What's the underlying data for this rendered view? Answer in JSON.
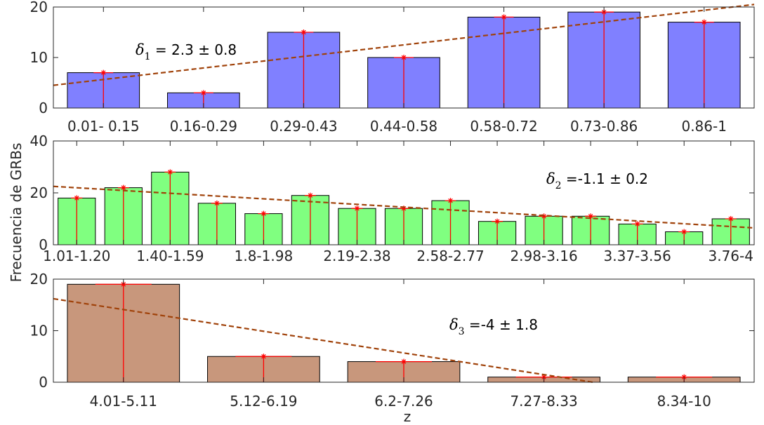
{
  "chart_data": [
    {
      "type": "bar",
      "categories": [
        "0.01- 0.15",
        "0.16-0.29",
        "0.29-0.43",
        "0.44-0.58",
        "0.58-0.72",
        "0.73-0.86",
        "0.86-1"
      ],
      "values": [
        7,
        3,
        15,
        10,
        18,
        19,
        17
      ],
      "ylim": [
        0,
        20
      ],
      "yticks": [
        0,
        10,
        20
      ],
      "bar_color": "#8080ff",
      "trend_line": {
        "start": 4.5,
        "end": 20.5,
        "color": "#a0420a"
      },
      "annotation": {
        "symbol": "δ",
        "sub": "1",
        "rest": " = 2.3 ± 0.8"
      },
      "grid": false
    },
    {
      "type": "bar",
      "categories": [
        "1.01-1.20",
        "",
        "1.40-1.59",
        "",
        "1.8-1.98",
        "",
        "2.19-2.38",
        "",
        "2.58-2.77",
        "",
        "2.98-3.16",
        "",
        "3.37-3.56",
        "",
        "3.76-4"
      ],
      "values": [
        18,
        22,
        28,
        16,
        12,
        19,
        14,
        14,
        17,
        9,
        11,
        11,
        8,
        5,
        10
      ],
      "ylim": [
        0,
        40
      ],
      "yticks": [
        0,
        20,
        40
      ],
      "bar_color": "#80ff80",
      "trend_line": {
        "start": 22.5,
        "end": 6.5,
        "color": "#a0420a"
      },
      "annotation": {
        "symbol": "δ",
        "sub": "2",
        "rest": " =-1.1 ± 0.2"
      },
      "grid": false
    },
    {
      "type": "bar",
      "categories": [
        "4.01-5.11",
        "5.12-6.19",
        "6.2-7.26",
        "7.27-8.33",
        "8.34-10"
      ],
      "values": [
        19,
        5,
        4,
        1,
        1
      ],
      "ylim": [
        0,
        20
      ],
      "yticks": [
        0,
        10,
        20
      ],
      "bar_color": "#c8977c",
      "trend_line": {
        "start": 16.2,
        "end": 0.0,
        "end_frac": 0.77,
        "color": "#a0420a"
      },
      "annotation": {
        "symbol": "δ",
        "sub": "3",
        "rest": " =-4 ± 1.8"
      },
      "grid": false
    }
  ],
  "ylabel": "Frecuencia de GRBs",
  "xlabel": "z",
  "colors": {
    "axis": "#262626",
    "error_bar": "#ff0000",
    "trend": "#a0420a"
  }
}
